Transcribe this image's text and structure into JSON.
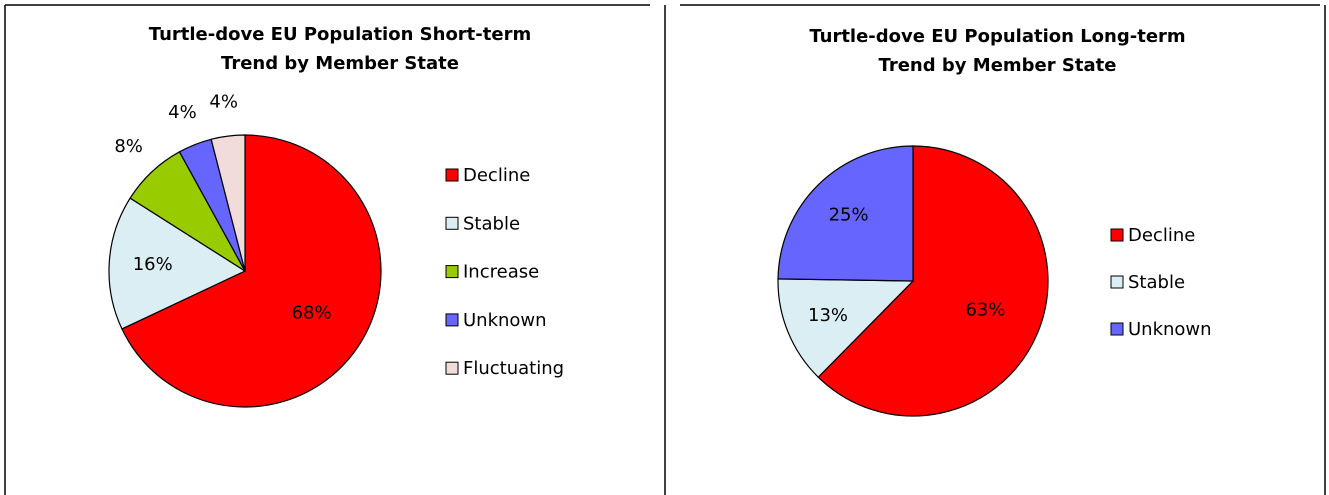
{
  "chart_data": [
    {
      "type": "pie",
      "title": "Turtle-dove EU Population Short-term Trend by Member State",
      "categories": [
        "Decline",
        "Stable",
        "Increase",
        "Unknown",
        "Fluctuating"
      ],
      "values": [
        68,
        16,
        8,
        4,
        4
      ],
      "value_labels": [
        "68%",
        "16%",
        "8%",
        "4%",
        "4%"
      ],
      "colors": [
        "#ff0000",
        "#dbeef4",
        "#99cc00",
        "#6666ff",
        "#f2dcdb"
      ]
    },
    {
      "type": "pie",
      "title": "Turtle-dove EU Population Long-term Trend by Member State",
      "categories": [
        "Decline",
        "Stable",
        "Unknown"
      ],
      "values": [
        63,
        13,
        25
      ],
      "value_labels": [
        "63%",
        "13%",
        "25%"
      ],
      "colors": [
        "#ff0000",
        "#dbeef4",
        "#6666ff"
      ]
    }
  ]
}
